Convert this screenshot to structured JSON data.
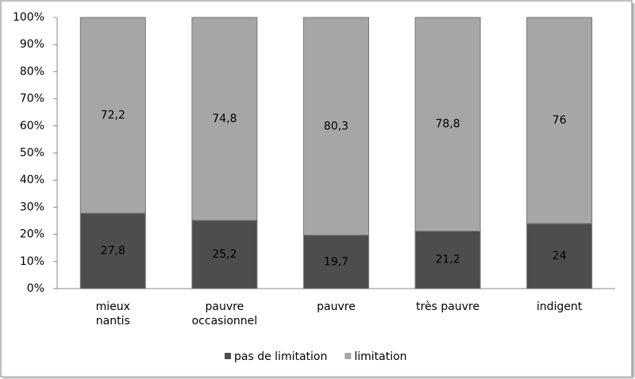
{
  "chart_data": {
    "type": "stacked_bar",
    "categories": [
      "mieux nantis",
      "pauvre occasionnel",
      "pauvre",
      "très pauvre",
      "indigent"
    ],
    "series": [
      {
        "name": "pas de limitation",
        "color": "#4d4d4d",
        "values": [
          27.8,
          25.2,
          19.7,
          21.2,
          24
        ],
        "value_labels": [
          "27,8",
          "25,2",
          "19,7",
          "21,2",
          "24"
        ]
      },
      {
        "name": "limitation",
        "color": "#a6a6a6",
        "values": [
          72.2,
          74.8,
          80.3,
          78.8,
          76
        ],
        "value_labels": [
          "72,2",
          "74,8",
          "80,3",
          "78,8",
          "76"
        ]
      }
    ],
    "ylim": [
      0,
      100
    ],
    "yticks": [
      {
        "value": 0,
        "label": "0%"
      },
      {
        "value": 10,
        "label": "10%"
      },
      {
        "value": 20,
        "label": "20%"
      },
      {
        "value": 30,
        "label": "30%"
      },
      {
        "value": 40,
        "label": "40%"
      },
      {
        "value": 50,
        "label": "50%"
      },
      {
        "value": 60,
        "label": "60%"
      },
      {
        "value": 70,
        "label": "70%"
      },
      {
        "value": 80,
        "label": "80%"
      },
      {
        "value": 90,
        "label": "90%"
      },
      {
        "value": 100,
        "label": "100%"
      }
    ],
    "legend": "bottom"
  }
}
